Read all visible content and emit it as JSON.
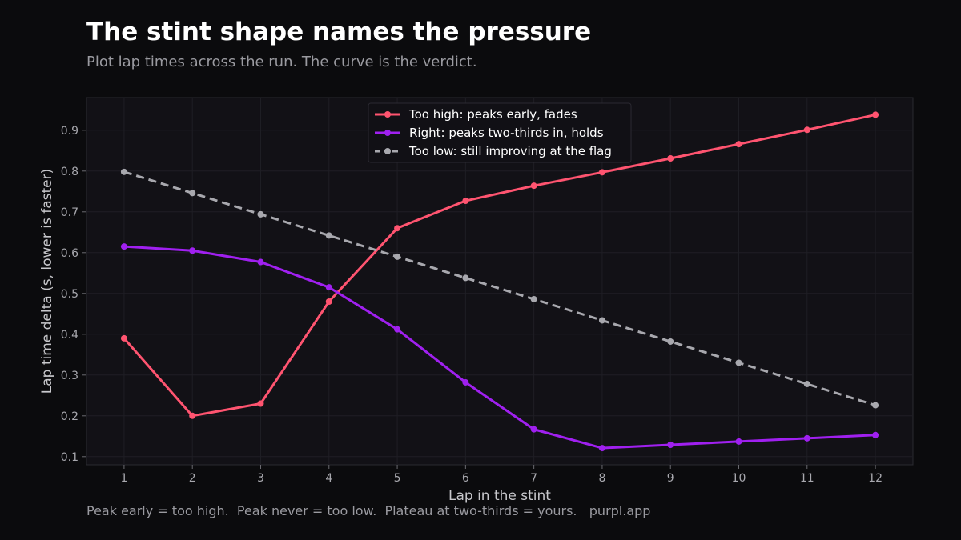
{
  "header": {
    "title": "The stint shape names the pressure",
    "subtitle": "Plot lap times across the run. The curve is the verdict."
  },
  "footer": {
    "note": "Peak early = too high.  Peak never = too low.  Plateau at two-thirds = yours.   purpl.app"
  },
  "chart_data": {
    "type": "line",
    "xlabel": "Lap in the stint",
    "ylabel": "Lap time delta (s, lower is faster)",
    "x": [
      1,
      2,
      3,
      4,
      5,
      6,
      7,
      8,
      9,
      10,
      11,
      12
    ],
    "xlim": [
      0.45,
      12.55
    ],
    "ylim": [
      0.08,
      0.98
    ],
    "yticks": [
      0.1,
      0.2,
      0.3,
      0.4,
      0.5,
      0.6,
      0.7,
      0.8,
      0.9
    ],
    "grid": true,
    "legend_position": "top-center",
    "background": "#121116",
    "series": [
      {
        "name": "Too high: peaks early, fades",
        "color": "#ff5470",
        "dashed": false,
        "values": [
          0.39,
          0.2,
          0.23,
          0.48,
          0.66,
          0.727,
          0.764,
          0.797,
          0.831,
          0.866,
          0.901,
          0.938
        ]
      },
      {
        "name": "Right: peaks two-thirds in, holds",
        "color": "#a020f0",
        "dashed": false,
        "values": [
          0.615,
          0.605,
          0.577,
          0.515,
          0.412,
          0.282,
          0.167,
          0.121,
          0.129,
          0.137,
          0.145,
          0.153
        ]
      },
      {
        "name": "Too low: still improving at the flag",
        "color": "#a8a8ae",
        "dashed": true,
        "values": [
          0.798,
          0.746,
          0.694,
          0.642,
          0.59,
          0.538,
          0.486,
          0.434,
          0.382,
          0.33,
          0.278,
          0.226
        ]
      }
    ]
  }
}
